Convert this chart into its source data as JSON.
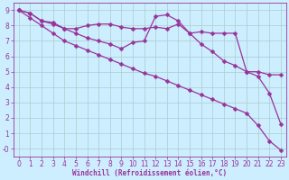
{
  "background_color": "#cceeff",
  "grid_color": "#aacccc",
  "line_color": "#993399",
  "xlim": [
    -0.5,
    23.5
  ],
  "ylim": [
    -0.5,
    9.5
  ],
  "xticks": [
    0,
    1,
    2,
    3,
    4,
    5,
    6,
    7,
    8,
    9,
    10,
    11,
    12,
    13,
    14,
    15,
    16,
    17,
    18,
    19,
    20,
    21,
    22,
    23
  ],
  "yticks": [
    0,
    1,
    2,
    3,
    4,
    5,
    6,
    7,
    8,
    9
  ],
  "xlabel": "Windchill (Refroidissement éolien,°C)",
  "line1_x": [
    0,
    1,
    2,
    3,
    4,
    5,
    6,
    7,
    8,
    9,
    10,
    11,
    12,
    13,
    14,
    15,
    16,
    17,
    18,
    19,
    20,
    21,
    22,
    23
  ],
  "line1_y": [
    9.0,
    8.8,
    8.3,
    8.2,
    7.8,
    7.8,
    8.0,
    8.1,
    8.1,
    7.9,
    7.8,
    7.8,
    7.9,
    7.8,
    8.1,
    7.5,
    7.6,
    7.5,
    7.5,
    7.5,
    5.0,
    5.0,
    4.8,
    4.8
  ],
  "line2_x": [
    0,
    1,
    2,
    3,
    4,
    5,
    6,
    7,
    8,
    9,
    10,
    11,
    12,
    13,
    14,
    15,
    16,
    17,
    18,
    19,
    20,
    21,
    22,
    23
  ],
  "line2_y": [
    9.0,
    8.8,
    8.3,
    8.1,
    7.8,
    7.5,
    7.2,
    7.0,
    6.8,
    6.5,
    6.9,
    7.0,
    8.6,
    8.7,
    8.3,
    7.5,
    6.8,
    6.3,
    5.7,
    5.4,
    5.0,
    4.7,
    3.6,
    1.6
  ],
  "line3_x": [
    0,
    1,
    2,
    3,
    4,
    5,
    6,
    7,
    8,
    9,
    10,
    11,
    12,
    13,
    14,
    15,
    16,
    17,
    18,
    19,
    20,
    21,
    22,
    23
  ],
  "line3_y": [
    9.0,
    8.5,
    8.0,
    7.5,
    7.0,
    6.7,
    6.4,
    6.1,
    5.8,
    5.5,
    5.2,
    4.9,
    4.7,
    4.4,
    4.1,
    3.8,
    3.5,
    3.2,
    2.9,
    2.6,
    2.3,
    1.5,
    0.5,
    -0.1
  ],
  "marker_size": 2.5,
  "line_width": 0.9,
  "tick_fontsize": 5.5,
  "xlabel_fontsize": 5.5
}
